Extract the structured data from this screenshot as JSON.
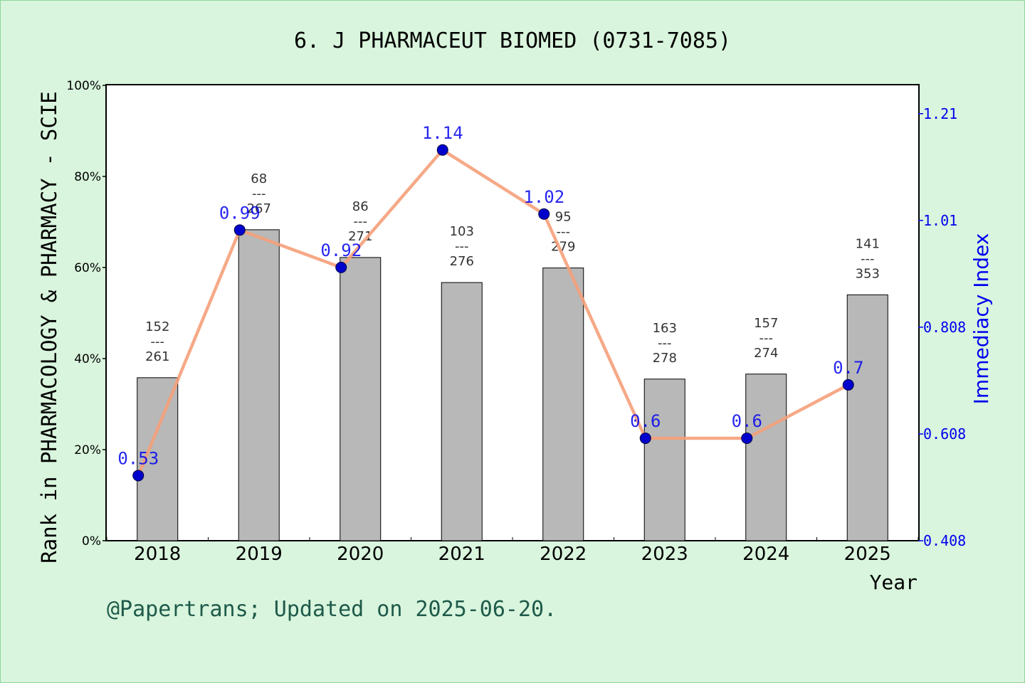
{
  "chart_data": {
    "type": "bar",
    "title": "6. J PHARMACEUT BIOMED (0731-7085)",
    "xlabel": "Year",
    "ylabel_left": "Rank in PHARMACOLOGY & PHARMACY - SCIE",
    "ylabel_right": "Immediacy Index",
    "footer": "@Papertrans; Updated on 2025-06-20.",
    "categories": [
      "2018",
      "2019",
      "2020",
      "2021",
      "2022",
      "2023",
      "2024",
      "2025"
    ],
    "rank_series": {
      "ranks": [
        152,
        68,
        86,
        103,
        95,
        163,
        157,
        141
      ],
      "totals": [
        261,
        267,
        271,
        276,
        279,
        278,
        274,
        353
      ],
      "separator": "---",
      "bar_values_pct": [
        35.8,
        68.3,
        62.2,
        56.7,
        59.9,
        35.5,
        36.6,
        54.0
      ],
      "color": "#b8b8b8"
    },
    "immediacy_series": {
      "values": [
        0.53,
        0.99,
        0.92,
        1.14,
        1.02,
        0.6,
        0.6,
        0.7
      ],
      "labels": [
        "0.53",
        "0.99",
        "0.92",
        "1.14",
        "1.02",
        "0.6",
        "0.6",
        "0.7"
      ],
      "line_color": "#f5a07a",
      "marker_color": "#0000cc"
    },
    "left_axis": {
      "ylim": [
        0,
        100
      ],
      "ticks": [
        "0%",
        "20%",
        "40%",
        "60%",
        "80%",
        "100%"
      ],
      "tick_values": [
        0,
        20,
        40,
        60,
        80,
        100
      ]
    },
    "right_axis": {
      "ylim": [
        0.408,
        1.261
      ],
      "ticks": [
        "0.408",
        "0.608",
        "0.808",
        "1.01",
        "1.21"
      ],
      "tick_values": [
        0.408,
        0.608,
        0.808,
        1.008,
        1.208
      ]
    },
    "grid": false,
    "legend": "none",
    "colors": {
      "background": "#d9f5dd",
      "plot_bg": "#ffffff",
      "right_axis": "#0000ee",
      "footer": "#1e5a4a"
    }
  }
}
